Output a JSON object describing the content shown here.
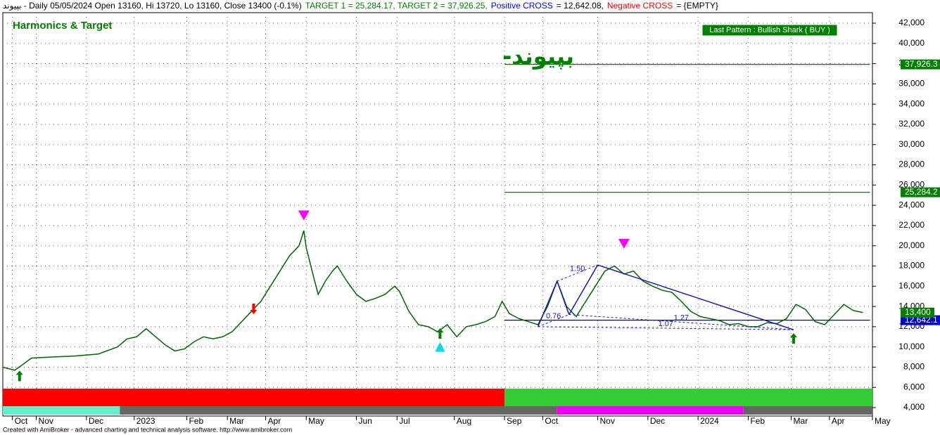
{
  "chart_data": {
    "type": "line",
    "header": [
      {
        "text": "بپیوند - Daily 05/05/2024 Open 13160, Hi 13720, Lo 13160, Close 13400 (-0.1%)",
        "color": "#000000"
      },
      {
        "text": "TARGET 1 = 25,284.17, TARGET 2 = 37,926.25,",
        "color": "#008000"
      },
      {
        "text": "Positive CROSS",
        "color": "#0000ff"
      },
      {
        "text": "= 12,642.08,",
        "color": "#000000"
      },
      {
        "text": "Negative CROSS",
        "color": "#ff0000"
      },
      {
        "text": "= {EMPTY}",
        "color": "#000000"
      }
    ],
    "title": "Harmonics & Target",
    "symbol": "بپیوند-",
    "pattern_label": "Last Pattern : Bullish Shark ( BUY )",
    "footer": "Created with AmiBroker - advanced charting and technical analysis software. http://www.amibroker.com",
    "xlim": [
      0,
      364
    ],
    "ylim": [
      3170,
      43040
    ],
    "yticks": [
      {
        "value": 4000,
        "label": "4,000"
      },
      {
        "value": 6000,
        "label": "6,000"
      },
      {
        "value": 8000,
        "label": "8,000"
      },
      {
        "value": 10000,
        "label": "10,000"
      },
      {
        "value": 12000,
        "label": "12,000"
      },
      {
        "value": 14000,
        "label": "14,000"
      },
      {
        "value": 16000,
        "label": "16,000"
      },
      {
        "value": 18000,
        "label": "18,000"
      },
      {
        "value": 20000,
        "label": "20,000"
      },
      {
        "value": 22000,
        "label": "22,000"
      },
      {
        "value": 24000,
        "label": "24,000"
      },
      {
        "value": 26000,
        "label": "26,000"
      },
      {
        "value": 28000,
        "label": "28,000"
      },
      {
        "value": 30000,
        "label": "30,000"
      },
      {
        "value": 32000,
        "label": "32,000"
      },
      {
        "value": 34000,
        "label": "34,000"
      },
      {
        "value": 36000,
        "label": "36,000"
      },
      {
        "value": 38000,
        "label": "38,000"
      },
      {
        "value": 40000,
        "label": "40,000"
      },
      {
        "value": 42000,
        "label": "42,000"
      }
    ],
    "xticks": [
      {
        "value": 4,
        "label": "Oct"
      },
      {
        "value": 14,
        "label": "Nov"
      },
      {
        "value": 35,
        "label": "Dec"
      },
      {
        "value": 55,
        "label": "2023"
      },
      {
        "value": 77,
        "label": "Feb"
      },
      {
        "value": 94,
        "label": "Mar"
      },
      {
        "value": 110,
        "label": "Apr"
      },
      {
        "value": 127,
        "label": "May"
      },
      {
        "value": 148,
        "label": "Jun"
      },
      {
        "value": 165,
        "label": "Jul"
      },
      {
        "value": 189,
        "label": "Aug"
      },
      {
        "value": 210,
        "label": "Sep"
      },
      {
        "value": 226,
        "label": "Oct"
      },
      {
        "value": 249,
        "label": "Nov"
      },
      {
        "value": 270,
        "label": "Dec"
      },
      {
        "value": 291,
        "label": "2024"
      },
      {
        "value": 312,
        "label": "Feb"
      },
      {
        "value": 330,
        "label": "Mar"
      },
      {
        "value": 346,
        "label": "Apr"
      },
      {
        "value": 364,
        "label": "May"
      }
    ],
    "grid": true,
    "series": [
      {
        "name": "Close",
        "color": "#006400",
        "x": [
          0,
          5,
          8,
          12,
          20,
          30,
          40,
          48,
          52,
          56,
          60,
          64,
          68,
          72,
          76,
          80,
          84,
          88,
          92,
          96,
          100,
          104,
          108,
          112,
          116,
          120,
          124,
          126,
          127,
          130,
          132,
          135,
          138,
          140,
          144,
          148,
          152,
          156,
          160,
          164,
          166,
          170,
          174,
          178,
          182,
          186,
          190,
          194,
          198,
          202,
          206,
          209,
          212,
          216,
          220,
          224,
          228,
          232,
          236,
          240,
          244,
          248,
          252,
          256,
          260,
          264,
          268,
          272,
          276,
          280,
          284,
          288,
          292,
          296,
          300,
          304,
          308,
          312,
          316,
          320,
          324,
          328,
          332,
          336,
          340,
          344,
          348,
          352,
          356,
          360
        ],
        "values": [
          8000,
          7700,
          8200,
          8900,
          9000,
          9100,
          9300,
          10000,
          10800,
          11000,
          11800,
          11000,
          10200,
          9600,
          9800,
          10500,
          11000,
          10800,
          11000,
          11500,
          12500,
          13500,
          14500,
          16000,
          17500,
          19000,
          20000,
          21500,
          19800,
          17000,
          15200,
          16500,
          17500,
          18000,
          16500,
          15200,
          14500,
          14800,
          15200,
          16000,
          15500,
          13500,
          12200,
          12000,
          11500,
          12200,
          11000,
          12000,
          12200,
          12500,
          13000,
          14500,
          13300,
          12800,
          12500,
          12200,
          14000,
          16500,
          14000,
          13000,
          14500,
          16000,
          17500,
          18000,
          17200,
          17500,
          16500,
          16000,
          15600,
          15400,
          14500,
          13500,
          13000,
          12800,
          12600,
          12200,
          12300,
          12000,
          12000,
          12400,
          12300,
          12800,
          14200,
          13700,
          12500,
          12200,
          13200,
          14200,
          13600,
          13400
        ]
      }
    ],
    "last_close": {
      "value": 13400,
      "label": "13,400",
      "color": "#008000"
    },
    "levels": [
      {
        "value": 37926.25,
        "label": "37,926.3",
        "color": "#008000",
        "start": 210,
        "end": 363
      },
      {
        "value": 25284.17,
        "label": "25,284.2",
        "color": "#008000",
        "start": 210,
        "end": 363
      },
      {
        "value": 12642.08,
        "label": "12,642.1",
        "color": "#0000cc",
        "start": 210,
        "end": 363
      }
    ],
    "pattern": {
      "color": "#1a1aa8",
      "x": [
        224,
        232,
        237,
        249,
        331
      ],
      "y": [
        12000,
        16500,
        13200,
        18100,
        11700
      ],
      "ratios": [
        "0.76",
        "1.50",
        "1.27",
        "1.07"
      ]
    },
    "signals": [
      {
        "kind": "up-arrow",
        "color": "#008000",
        "x": 7,
        "y": 7100
      },
      {
        "kind": "up-arrow",
        "color": "#008000",
        "x": 183,
        "y": 11300
      },
      {
        "kind": "up-arrow",
        "color": "#008000",
        "x": 331,
        "y": 10800
      },
      {
        "kind": "down-arrow",
        "color": "#ff0000",
        "x": 105,
        "y": 13800
      },
      {
        "kind": "down-triangle",
        "color": "#ff00ff",
        "x": 126,
        "y": 23000
      },
      {
        "kind": "down-triangle",
        "color": "#ff00ff",
        "x": 260,
        "y": 20200
      },
      {
        "kind": "up-triangle",
        "color": "#00e0e0",
        "x": 183,
        "y": 10000
      }
    ],
    "ribbons": [
      [
        {
          "from": 0,
          "to": 210,
          "color": "#ff0000"
        },
        {
          "from": 210,
          "to": 364,
          "color": "#33cc33"
        }
      ],
      [
        {
          "from": 0,
          "to": 49,
          "color": "#66eecc"
        },
        {
          "from": 49,
          "to": 232,
          "color": "#666666"
        },
        {
          "from": 232,
          "to": 310,
          "color": "#ee00ee"
        },
        {
          "from": 310,
          "to": 364,
          "color": "#666666"
        }
      ]
    ]
  }
}
